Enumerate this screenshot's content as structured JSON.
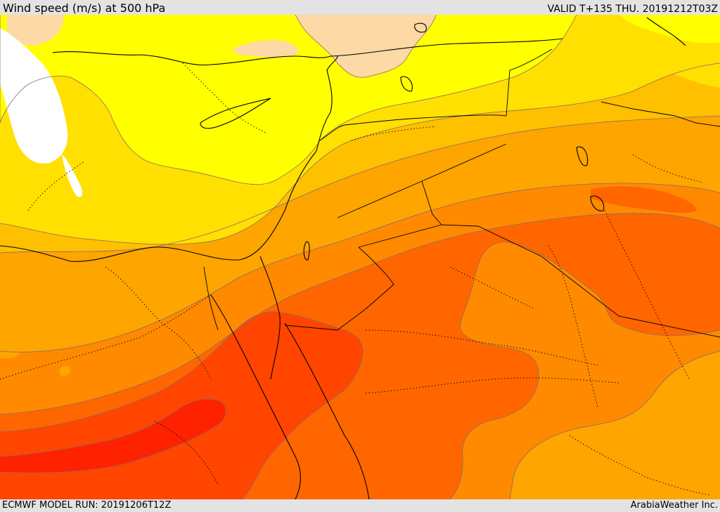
{
  "header": {
    "title": "Wind speed (m/s) at 500 hPa",
    "valid": "VALID T+135 THU. 20191212T03Z"
  },
  "footer": {
    "model_run": "ECMWF MODEL RUN: 20191206T12Z",
    "credit": "ArabiaWeather Inc."
  },
  "colors": {
    "band_lt10": "#ffffff",
    "band_10_15": "#fcd9a5",
    "band_15_20": "#ffff00",
    "band_20_25": "#ffe000",
    "band_25_30": "#ffc000",
    "band_30_35": "#ffa500",
    "band_35_40": "#ff8a00",
    "band_40_45": "#ff6600",
    "band_45_50": "#ff4500",
    "band_50_55": "#ff2200",
    "contour": "#8b6a6a",
    "coastline": "#000000",
    "border": "#000000"
  }
}
